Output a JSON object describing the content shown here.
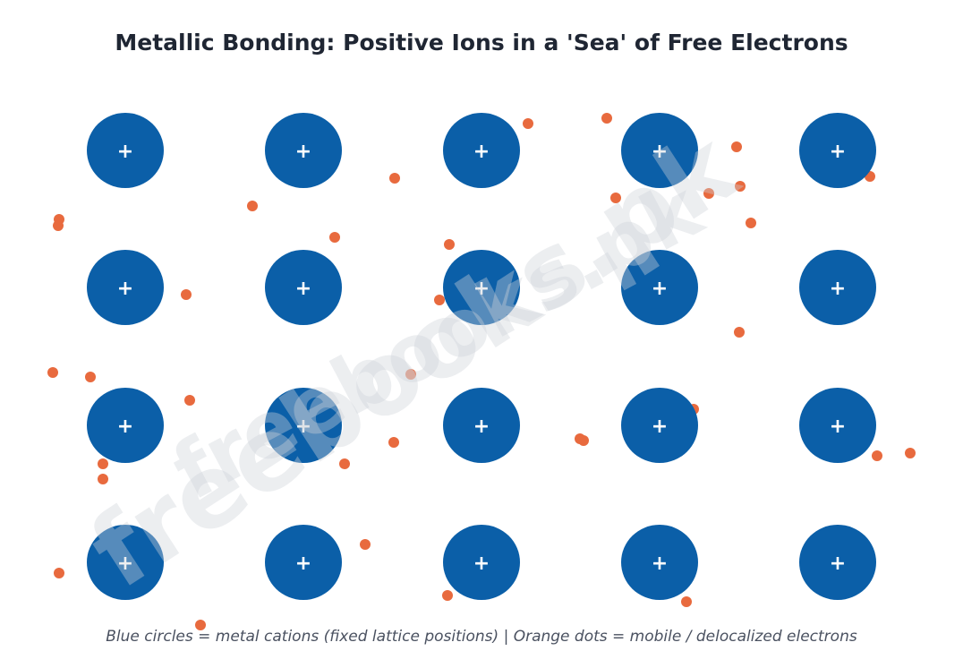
{
  "title": "Metallic Bonding: Positive Ions in a 'Sea' of Free Electrons",
  "caption": "Blue circles = metal cations (fixed lattice positions)   |   Orange dots = mobile / delocalized electrons",
  "watermark": "freebooks.pk",
  "colors": {
    "cation": "#0b5fa8",
    "electron": "#e86a3e",
    "title": "#1f2633",
    "caption": "#4a5160"
  },
  "ion_symbol": "+",
  "lattice": {
    "rows": 4,
    "cols": 5
  }
}
